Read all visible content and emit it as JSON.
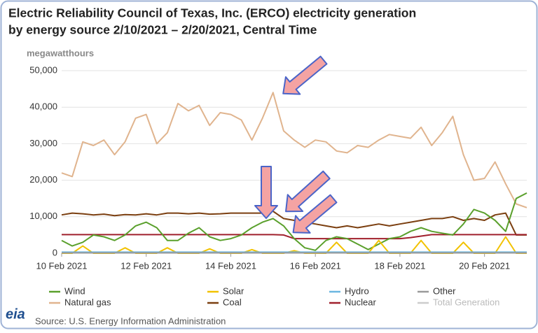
{
  "chart_data": {
    "type": "line",
    "title": [
      "Electric Reliability Council of Texas, Inc. (ERCO) electricity generation",
      "by energy source 2/10/2021 – 2/20/2021, Central Time"
    ],
    "ylabel": "megawatthours",
    "source": "Source: U.S. Energy Information Administration",
    "logo": "eia",
    "xlim": [
      10,
      21
    ],
    "xticks": [
      {
        "value": 10,
        "label": "10 Feb 2021"
      },
      {
        "value": 12,
        "label": "12 Feb 2021"
      },
      {
        "value": 14,
        "label": "14 Feb 2021"
      },
      {
        "value": 16,
        "label": "16 Feb 2021"
      },
      {
        "value": 18,
        "label": "18 Feb 2021"
      },
      {
        "value": 20,
        "label": "20 Feb 2021"
      }
    ],
    "ylim": [
      0,
      50000
    ],
    "yticks": [
      0,
      {
        "value": 10000,
        "label": "10,000"
      },
      {
        "value": 20000,
        "label": "20,000"
      },
      {
        "value": 30000,
        "label": "30,000"
      },
      {
        "value": 40000,
        "label": "40,000"
      },
      {
        "value": 50000,
        "label": "50,000"
      }
    ],
    "grid": true,
    "x": [
      10,
      10.25,
      10.5,
      10.75,
      11,
      11.25,
      11.5,
      11.75,
      12,
      12.25,
      12.5,
      12.75,
      13,
      13.25,
      13.5,
      13.75,
      14,
      14.25,
      14.5,
      14.75,
      15,
      15.25,
      15.5,
      15.75,
      16,
      16.25,
      16.5,
      16.75,
      17,
      17.25,
      17.5,
      17.75,
      18,
      18.25,
      18.5,
      18.75,
      19,
      19.25,
      19.5,
      19.75,
      20,
      20.25,
      20.5,
      20.75,
      21
    ],
    "series": [
      {
        "name": "Wind",
        "color": "#5aa02c",
        "visible": true,
        "values": [
          3500,
          2000,
          3000,
          5000,
          4500,
          3500,
          5000,
          7500,
          8500,
          7000,
          3500,
          3500,
          5500,
          7000,
          4500,
          3500,
          4000,
          5000,
          7000,
          8500,
          9500,
          7500,
          4000,
          1500,
          800,
          3500,
          4500,
          4000,
          2500,
          1000,
          2500,
          4000,
          4500,
          6000,
          7000,
          6000,
          5500,
          5000,
          8000,
          12000,
          11000,
          9000,
          6000,
          15000,
          16500
        ]
      },
      {
        "name": "Solar",
        "color": "#f2c200",
        "visible": true,
        "values": [
          0,
          0,
          2000,
          0,
          0,
          0,
          1500,
          0,
          0,
          0,
          1500,
          0,
          0,
          0,
          1200,
          0,
          0,
          0,
          1000,
          0,
          0,
          0,
          700,
          0,
          0,
          0,
          3000,
          0,
          0,
          0,
          3500,
          0,
          0,
          0,
          3500,
          0,
          0,
          0,
          3000,
          0,
          0,
          0,
          4500,
          0,
          0
        ]
      },
      {
        "name": "Hydro",
        "color": "#6bb6e0",
        "visible": true,
        "values": [
          300,
          300,
          300,
          300,
          300,
          300,
          300,
          300,
          300,
          300,
          300,
          300,
          300,
          300,
          300,
          300,
          300,
          300,
          300,
          300,
          300,
          300,
          300,
          300,
          300,
          300,
          300,
          300,
          300,
          300,
          300,
          300,
          300,
          300,
          300,
          300,
          300,
          300,
          300,
          300,
          300,
          300,
          300,
          300,
          300
        ]
      },
      {
        "name": "Other",
        "color": "#9a9a9a",
        "visible": true,
        "values": [
          100,
          100,
          100,
          100,
          100,
          100,
          100,
          100,
          100,
          100,
          100,
          100,
          100,
          100,
          100,
          100,
          100,
          100,
          100,
          100,
          100,
          100,
          100,
          100,
          100,
          100,
          100,
          100,
          100,
          100,
          100,
          100,
          100,
          100,
          100,
          100,
          100,
          100,
          100,
          100,
          100,
          100,
          100,
          100,
          100
        ]
      },
      {
        "name": "Natural gas",
        "color": "#e0b48e",
        "visible": true,
        "values": [
          22000,
          21000,
          30500,
          29500,
          31000,
          27000,
          30500,
          37000,
          38000,
          30000,
          33000,
          41000,
          39000,
          40500,
          35000,
          38500,
          38000,
          36500,
          31000,
          37000,
          44000,
          33500,
          31000,
          29000,
          31000,
          30500,
          28000,
          27500,
          29500,
          29000,
          31000,
          32500,
          32000,
          31500,
          34500,
          29500,
          33000,
          37500,
          27000,
          20000,
          20500,
          25000,
          19000,
          13500,
          12500
        ]
      },
      {
        "name": "Coal",
        "color": "#7b3f10",
        "visible": true,
        "values": [
          10500,
          11000,
          10800,
          10500,
          10700,
          10300,
          10600,
          10500,
          10800,
          10500,
          11000,
          11000,
          10800,
          11000,
          10700,
          10800,
          11000,
          11000,
          11000,
          11000,
          11500,
          9500,
          9000,
          8500,
          8000,
          7500,
          7000,
          7500,
          7000,
          7500,
          8000,
          7500,
          8000,
          8500,
          9000,
          9500,
          9500,
          10000,
          9000,
          9500,
          9000,
          10500,
          11000,
          5000,
          5000
        ]
      },
      {
        "name": "Nuclear",
        "color": "#a0202c",
        "visible": true,
        "values": [
          5100,
          5100,
          5100,
          5100,
          5100,
          5100,
          5100,
          5100,
          5100,
          5100,
          5100,
          5100,
          5100,
          5100,
          5100,
          5100,
          5100,
          5100,
          5100,
          5100,
          5100,
          5000,
          4000,
          4000,
          4000,
          4000,
          4000,
          4000,
          4000,
          4000,
          4000,
          4000,
          4000,
          4300,
          4700,
          5100,
          5100,
          5100,
          5100,
          5100,
          5100,
          5100,
          5100,
          5100,
          5100
        ]
      },
      {
        "name": "Total Generation",
        "color": "#cccccc",
        "visible": false,
        "values": [
          null,
          null,
          null,
          null,
          null,
          null,
          null,
          null,
          null,
          null,
          null,
          null,
          null,
          null,
          null,
          null,
          null,
          null,
          null,
          null,
          null,
          null,
          null,
          null,
          null,
          null,
          null,
          null,
          null,
          null,
          null,
          null,
          null,
          null,
          null,
          null,
          null,
          null,
          null,
          null,
          null,
          null,
          null,
          null,
          null
        ]
      }
    ]
  }
}
